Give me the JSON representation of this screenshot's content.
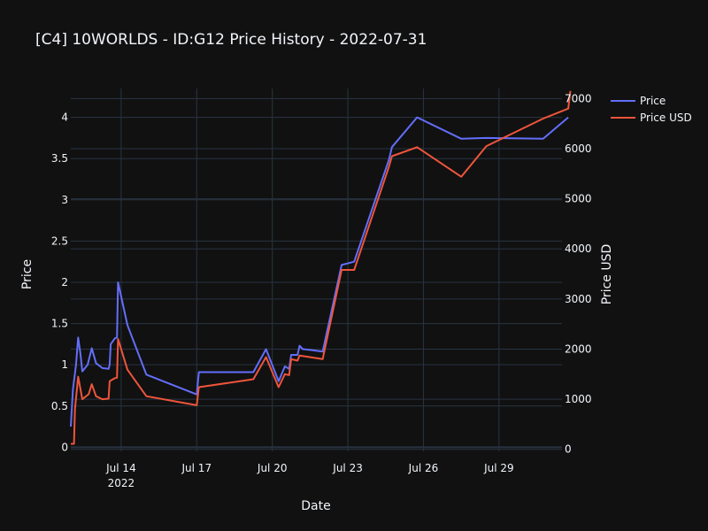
{
  "chart_data": {
    "type": "line",
    "title": "[C4] 10WORLDS - ID:G12 Price History - 2022-07-31",
    "xlabel": "Date",
    "ylabel": "Price",
    "y2label": "Price USD",
    "x_ticks": [
      {
        "date": "2022-07-14",
        "label": "Jul 14",
        "sublabel": "2022"
      },
      {
        "date": "2022-07-17",
        "label": "Jul 17",
        "sublabel": ""
      },
      {
        "date": "2022-07-20",
        "label": "Jul 20",
        "sublabel": ""
      },
      {
        "date": "2022-07-23",
        "label": "Jul 23",
        "sublabel": ""
      },
      {
        "date": "2022-07-26",
        "label": "Jul 26",
        "sublabel": ""
      },
      {
        "date": "2022-07-29",
        "label": "Jul 29",
        "sublabel": ""
      }
    ],
    "y_ticks": [
      "0",
      "0.5",
      "1",
      "1.5",
      "2",
      "2.5",
      "3",
      "3.5",
      "4"
    ],
    "y2_ticks": [
      "0",
      "1000",
      "2000",
      "3000",
      "4000",
      "5000",
      "6000",
      "7000"
    ],
    "xlim": [
      "2022-07-12 00:00",
      "2022-07-31 12:00"
    ],
    "ylim": [
      -0.05,
      4.35
    ],
    "y2lim": [
      -40,
      7200
    ],
    "grid": true,
    "legend_position": "top-right",
    "series": [
      {
        "name": "Price",
        "axis": "y",
        "color": "#636efa",
        "points": [
          [
            "2022-07-12 00:00",
            0.25
          ],
          [
            "2022-07-12 02:00",
            0.7
          ],
          [
            "2022-07-12 05:00",
            1.0
          ],
          [
            "2022-07-12 07:00",
            1.33
          ],
          [
            "2022-07-12 09:00",
            1.15
          ],
          [
            "2022-07-12 11:00",
            0.92
          ],
          [
            "2022-07-12 16:00",
            1.0
          ],
          [
            "2022-07-12 20:00",
            1.2
          ],
          [
            "2022-07-13 00:00",
            1.02
          ],
          [
            "2022-07-13 06:00",
            0.96
          ],
          [
            "2022-07-13 12:00",
            0.95
          ],
          [
            "2022-07-13 13:00",
            1.0
          ],
          [
            "2022-07-13 14:00",
            1.25
          ],
          [
            "2022-07-13 18:00",
            1.32
          ],
          [
            "2022-07-13 20:00",
            1.33
          ],
          [
            "2022-07-13 21:00",
            2.0
          ],
          [
            "2022-07-14 06:00",
            1.48
          ],
          [
            "2022-07-15 00:00",
            0.88
          ],
          [
            "2022-07-17 00:00",
            0.64
          ],
          [
            "2022-07-17 02:00",
            0.91
          ],
          [
            "2022-07-19 06:00",
            0.91
          ],
          [
            "2022-07-19 18:00",
            1.19
          ],
          [
            "2022-07-20 06:00",
            0.8
          ],
          [
            "2022-07-20 12:00",
            0.98
          ],
          [
            "2022-07-20 16:00",
            0.95
          ],
          [
            "2022-07-20 18:00",
            1.12
          ],
          [
            "2022-07-21 00:00",
            1.12
          ],
          [
            "2022-07-21 02:00",
            1.23
          ],
          [
            "2022-07-21 05:00",
            1.19
          ],
          [
            "2022-07-21 12:00",
            1.18
          ],
          [
            "2022-07-22 00:00",
            1.16
          ],
          [
            "2022-07-22 18:00",
            2.21
          ],
          [
            "2022-07-23 06:00",
            2.25
          ],
          [
            "2022-07-24 15:00",
            3.48
          ],
          [
            "2022-07-24 18:00",
            3.64
          ],
          [
            "2022-07-25 18:00",
            4.0
          ],
          [
            "2022-07-27 12:00",
            3.74
          ],
          [
            "2022-07-28 12:00",
            3.75
          ],
          [
            "2022-07-30 18:00",
            3.74
          ],
          [
            "2022-07-31 18:00",
            4.0
          ]
        ]
      },
      {
        "name": "Price USD",
        "axis": "y2",
        "color": "#ef553b",
        "points": [
          [
            "2022-07-12 00:00",
            110
          ],
          [
            "2022-07-12 03:00",
            110
          ],
          [
            "2022-07-12 04:00",
            800
          ],
          [
            "2022-07-12 07:00",
            1450
          ],
          [
            "2022-07-12 11:00",
            1000
          ],
          [
            "2022-07-12 17:00",
            1100
          ],
          [
            "2022-07-12 20:00",
            1300
          ],
          [
            "2022-07-13 00:00",
            1060
          ],
          [
            "2022-07-13 06:00",
            1000
          ],
          [
            "2022-07-13 12:00",
            1010
          ],
          [
            "2022-07-13 13:00",
            1360
          ],
          [
            "2022-07-13 18:00",
            1420
          ],
          [
            "2022-07-13 20:00",
            1430
          ],
          [
            "2022-07-13 21:00",
            2200
          ],
          [
            "2022-07-14 06:00",
            1590
          ],
          [
            "2022-07-15 00:00",
            1060
          ],
          [
            "2022-07-17 00:00",
            880
          ],
          [
            "2022-07-17 02:00",
            1240
          ],
          [
            "2022-07-19 06:00",
            1400
          ],
          [
            "2022-07-19 18:00",
            1840
          ],
          [
            "2022-07-20 06:00",
            1240
          ],
          [
            "2022-07-20 12:00",
            1500
          ],
          [
            "2022-07-20 16:00",
            1480
          ],
          [
            "2022-07-20 18:00",
            1800
          ],
          [
            "2022-07-21 00:00",
            1770
          ],
          [
            "2022-07-21 02:00",
            1870
          ],
          [
            "2022-07-22 00:00",
            1800
          ],
          [
            "2022-07-22 18:00",
            3580
          ],
          [
            "2022-07-23 06:00",
            3580
          ],
          [
            "2022-07-24 15:00",
            5630
          ],
          [
            "2022-07-24 18:00",
            5850
          ],
          [
            "2022-07-25 18:00",
            6030
          ],
          [
            "2022-07-27 12:00",
            5440
          ],
          [
            "2022-07-28 12:00",
            6050
          ],
          [
            "2022-07-30 18:00",
            6600
          ],
          [
            "2022-07-31 18:00",
            6800
          ],
          [
            "2022-07-31 20:00",
            7150
          ]
        ]
      }
    ]
  }
}
